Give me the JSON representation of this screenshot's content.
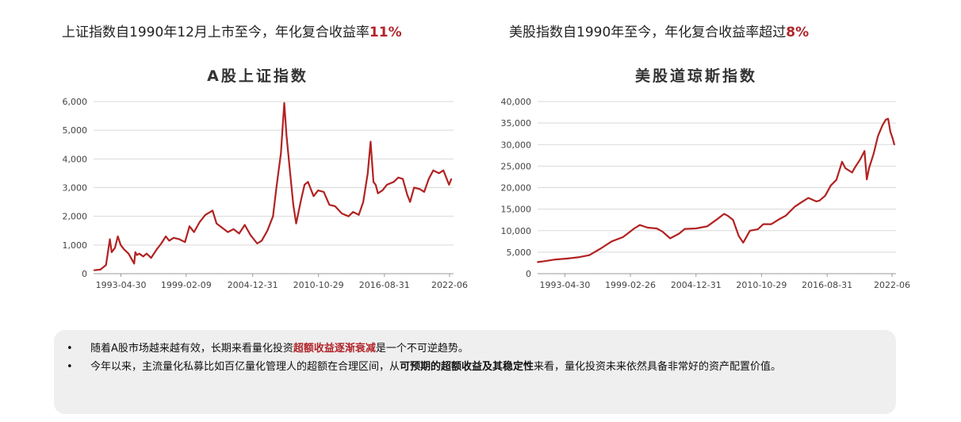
{
  "headlines": {
    "left": {
      "text": "上证指数自1990年12月上市至今，年化复合收益率",
      "highlight": "11%"
    },
    "right": {
      "text": "美股指数自1990年至今，年化复合收益率超过",
      "highlight": "8%"
    }
  },
  "chart_data": [
    {
      "type": "line",
      "title": "A股上证指数",
      "xlabel": "",
      "ylabel": "",
      "ylim": [
        0,
        6000
      ],
      "yticks": [
        "0",
        "1,000",
        "2,000",
        "3,000",
        "4,000",
        "5,000",
        "6,000"
      ],
      "ytick_values": [
        0,
        1000,
        2000,
        3000,
        4000,
        5000,
        6000
      ],
      "xticks": [
        "1993-04-30",
        "1999-02-09",
        "2004-12-31",
        "2010-10-29",
        "2016-08-31",
        "2022-06"
      ],
      "xtick_values": [
        1993.33,
        1999.11,
        2005.0,
        2010.83,
        2016.67,
        2022.45
      ],
      "xlim": [
        1990.9,
        2022.8
      ],
      "grid": true,
      "series": [
        {
          "color": "#b22222",
          "x": [
            1990.95,
            1991.5,
            1992.0,
            1992.35,
            1992.5,
            1992.8,
            1993.05,
            1993.3,
            1993.6,
            1994.0,
            1994.5,
            1994.6,
            1994.75,
            1994.95,
            1995.3,
            1995.6,
            1996.0,
            1996.5,
            1996.9,
            1997.3,
            1997.6,
            1998.0,
            1998.5,
            1999.0,
            1999.4,
            1999.8,
            2000.3,
            2000.8,
            2001.45,
            2001.8,
            2002.3,
            2002.8,
            2003.3,
            2003.8,
            2004.3,
            2004.8,
            2005.4,
            2005.8,
            2006.3,
            2006.8,
            2007.1,
            2007.5,
            2007.8,
            2008.0,
            2008.3,
            2008.6,
            2008.85,
            2009.3,
            2009.6,
            2009.9,
            2010.4,
            2010.8,
            2011.3,
            2011.8,
            2012.3,
            2012.9,
            2013.5,
            2013.9,
            2014.4,
            2014.8,
            2015.2,
            2015.45,
            2015.7,
            2015.9,
            2016.1,
            2016.5,
            2016.9,
            2017.5,
            2017.9,
            2018.3,
            2018.7,
            2018.95,
            2019.3,
            2019.8,
            2020.2,
            2020.6,
            2021.0,
            2021.5,
            2021.9,
            2022.2,
            2022.4,
            2022.6
          ],
          "y": [
            120,
            140,
            300,
            1200,
            750,
            900,
            1300,
            1000,
            850,
            700,
            350,
            750,
            650,
            700,
            600,
            700,
            550,
            850,
            1050,
            1300,
            1150,
            1250,
            1200,
            1100,
            1650,
            1450,
            1800,
            2050,
            2200,
            1750,
            1600,
            1450,
            1550,
            1400,
            1700,
            1350,
            1050,
            1150,
            1500,
            2000,
            3000,
            4200,
            5950,
            4800,
            3600,
            2400,
            1750,
            2600,
            3100,
            3200,
            2700,
            2900,
            2850,
            2400,
            2350,
            2100,
            2000,
            2150,
            2050,
            2500,
            3500,
            4600,
            3200,
            3100,
            2800,
            2900,
            3100,
            3200,
            3350,
            3300,
            2750,
            2500,
            3000,
            2950,
            2850,
            3300,
            3600,
            3500,
            3600,
            3300,
            3100,
            3300
          ]
        }
      ]
    },
    {
      "type": "line",
      "title": "美股道琼斯指数",
      "xlabel": "",
      "ylabel": "",
      "ylim": [
        0,
        40000
      ],
      "yticks": [
        "0",
        "5,000",
        "10,000",
        "15,000",
        "20,000",
        "25,000",
        "30,000",
        "35,000",
        "40,000"
      ],
      "ytick_values": [
        0,
        5000,
        10000,
        15000,
        20000,
        25000,
        30000,
        35000,
        40000
      ],
      "xticks": [
        "1993-04-30",
        "1999-02-26",
        "2004-12-31",
        "2010-10-29",
        "2016-08-31",
        "2022-06"
      ],
      "xtick_values": [
        1993.33,
        1999.16,
        2005.0,
        2010.83,
        2016.67,
        2022.45
      ],
      "xlim": [
        1990.9,
        2022.8
      ],
      "grid": true,
      "series": [
        {
          "color": "#b22222",
          "x": [
            1990.9,
            1991.5,
            1992.5,
            1993.5,
            1994.5,
            1995.5,
            1996.5,
            1997.5,
            1998.5,
            1999.0,
            1999.5,
            2000.0,
            2000.7,
            2001.5,
            2002.0,
            2002.7,
            2003.5,
            2004.0,
            2005.0,
            2006.0,
            2006.8,
            2007.5,
            2007.8,
            2008.3,
            2008.8,
            2009.2,
            2009.8,
            2010.5,
            2011.0,
            2011.7,
            2012.5,
            2013.0,
            2013.8,
            2014.5,
            2015.0,
            2015.7,
            2016.0,
            2016.5,
            2017.0,
            2017.5,
            2018.0,
            2018.3,
            2018.9,
            2019.1,
            2019.6,
            2020.0,
            2020.2,
            2020.4,
            2020.8,
            2021.2,
            2021.6,
            2021.9,
            2022.1,
            2022.3,
            2022.5,
            2022.65
          ],
          "y": [
            2700,
            2900,
            3300,
            3500,
            3800,
            4300,
            5800,
            7500,
            8500,
            9500,
            10500,
            11300,
            10700,
            10500,
            9800,
            8200,
            9300,
            10400,
            10500,
            11000,
            12500,
            13900,
            13500,
            12500,
            8800,
            7200,
            10000,
            10300,
            11500,
            11500,
            12800,
            13500,
            15600,
            16800,
            17600,
            16800,
            17000,
            18100,
            20500,
            21800,
            26000,
            24500,
            23500,
            24500,
            26500,
            28500,
            21900,
            24500,
            27800,
            32000,
            34500,
            35800,
            36000,
            33000,
            31500,
            30000
          ]
        }
      ]
    }
  ],
  "notes": {
    "bullet_symbol": "•",
    "items": [
      {
        "before": "随着A股市场越来越有效，长期来看量化投资",
        "emphasis": "超额收益逐渐衰减",
        "after": "是一个不可逆趋势。"
      },
      {
        "before": "今年以来，主流量化私募比如百亿量化管理人的超额在合理区间，从",
        "emphasis": "可预期的超额收益及其稳定性",
        "after": "来看，量化投资未来依然具备非常好的资产配置价值。"
      }
    ]
  }
}
